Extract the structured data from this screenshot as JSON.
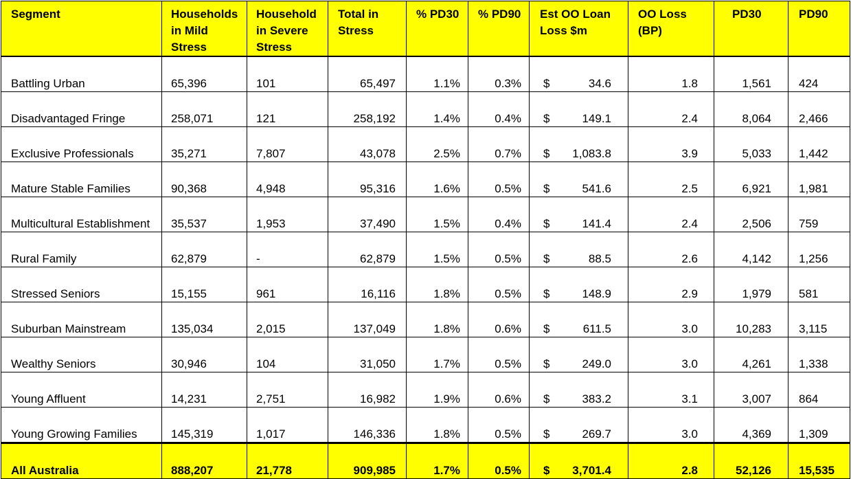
{
  "headers": {
    "segment": "Segment",
    "mild": "Households in Mild Stress",
    "severe": "Household in Severe Stress",
    "total": "Total in Stress",
    "pct_pd30": "% PD30",
    "pct_pd90": "% PD90",
    "loan_loss": "Est OO Loan Loss $m",
    "oo_loss": "OO Loss (BP)",
    "pd30": "PD30",
    "pd90": "PD90"
  },
  "currency_symbol": "$",
  "rows": [
    {
      "segment": "Battling Urban",
      "mild": "65,396",
      "severe": "101",
      "total": "65,497",
      "pct_pd30": "1.1%",
      "pct_pd90": "0.3%",
      "loan_loss": "34.6",
      "oo_loss": "1.8",
      "pd30": "1,561",
      "pd90": "424"
    },
    {
      "segment": "Disadvantaged Fringe",
      "mild": "258,071",
      "severe": "121",
      "total": "258,192",
      "pct_pd30": "1.4%",
      "pct_pd90": "0.4%",
      "loan_loss": "149.1",
      "oo_loss": "2.4",
      "pd30": "8,064",
      "pd90": "2,466"
    },
    {
      "segment": "Exclusive Professionals",
      "mild": "35,271",
      "severe": "7,807",
      "total": "43,078",
      "pct_pd30": "2.5%",
      "pct_pd90": "0.7%",
      "loan_loss": "1,083.8",
      "oo_loss": "3.9",
      "pd30": "5,033",
      "pd90": "1,442"
    },
    {
      "segment": "Mature Stable Families",
      "mild": "90,368",
      "severe": "4,948",
      "total": "95,316",
      "pct_pd30": "1.6%",
      "pct_pd90": "0.5%",
      "loan_loss": "541.6",
      "oo_loss": "2.5",
      "pd30": "6,921",
      "pd90": "1,981"
    },
    {
      "segment": "Multicultural Establishment",
      "mild": "35,537",
      "severe": "1,953",
      "total": "37,490",
      "pct_pd30": "1.5%",
      "pct_pd90": "0.4%",
      "loan_loss": "141.4",
      "oo_loss": "2.4",
      "pd30": "2,506",
      "pd90": "759"
    },
    {
      "segment": "Rural Family",
      "mild": "62,879",
      "severe": "-",
      "total": "62,879",
      "pct_pd30": "1.5%",
      "pct_pd90": "0.5%",
      "loan_loss": "88.5",
      "oo_loss": "2.6",
      "pd30": "4,142",
      "pd90": "1,256"
    },
    {
      "segment": "Stressed Seniors",
      "mild": "15,155",
      "severe": "961",
      "total": "16,116",
      "pct_pd30": "1.8%",
      "pct_pd90": "0.5%",
      "loan_loss": "148.9",
      "oo_loss": "2.9",
      "pd30": "1,979",
      "pd90": "581"
    },
    {
      "segment": "Suburban Mainstream",
      "mild": "135,034",
      "severe": "2,015",
      "total": "137,049",
      "pct_pd30": "1.8%",
      "pct_pd90": "0.6%",
      "loan_loss": "611.5",
      "oo_loss": "3.0",
      "pd30": "10,283",
      "pd90": "3,115"
    },
    {
      "segment": "Wealthy Seniors",
      "mild": "30,946",
      "severe": "104",
      "total": "31,050",
      "pct_pd30": "1.7%",
      "pct_pd90": "0.5%",
      "loan_loss": "249.0",
      "oo_loss": "3.0",
      "pd30": "4,261",
      "pd90": "1,338"
    },
    {
      "segment": "Young Affluent",
      "mild": "14,231",
      "severe": "2,751",
      "total": "16,982",
      "pct_pd30": "1.9%",
      "pct_pd90": "0.6%",
      "loan_loss": "383.2",
      "oo_loss": "3.1",
      "pd30": "3,007",
      "pd90": "864"
    },
    {
      "segment": "Young Growing Families",
      "mild": "145,319",
      "severe": "1,017",
      "total": "146,336",
      "pct_pd30": "1.8%",
      "pct_pd90": "0.5%",
      "loan_loss": "269.7",
      "oo_loss": "3.0",
      "pd30": "4,369",
      "pd90": "1,309"
    }
  ],
  "total_row": {
    "segment": "All Australia",
    "mild": "888,207",
    "severe": "21,778",
    "total": "909,985",
    "pct_pd30": "1.7%",
    "pct_pd90": "0.5%",
    "loan_loss": "3,701.4",
    "oo_loss": "2.8",
    "pd30": "52,126",
    "pd90": "15,535"
  },
  "colors": {
    "header_bg": "#ffff00",
    "total_bg": "#ffff00"
  }
}
